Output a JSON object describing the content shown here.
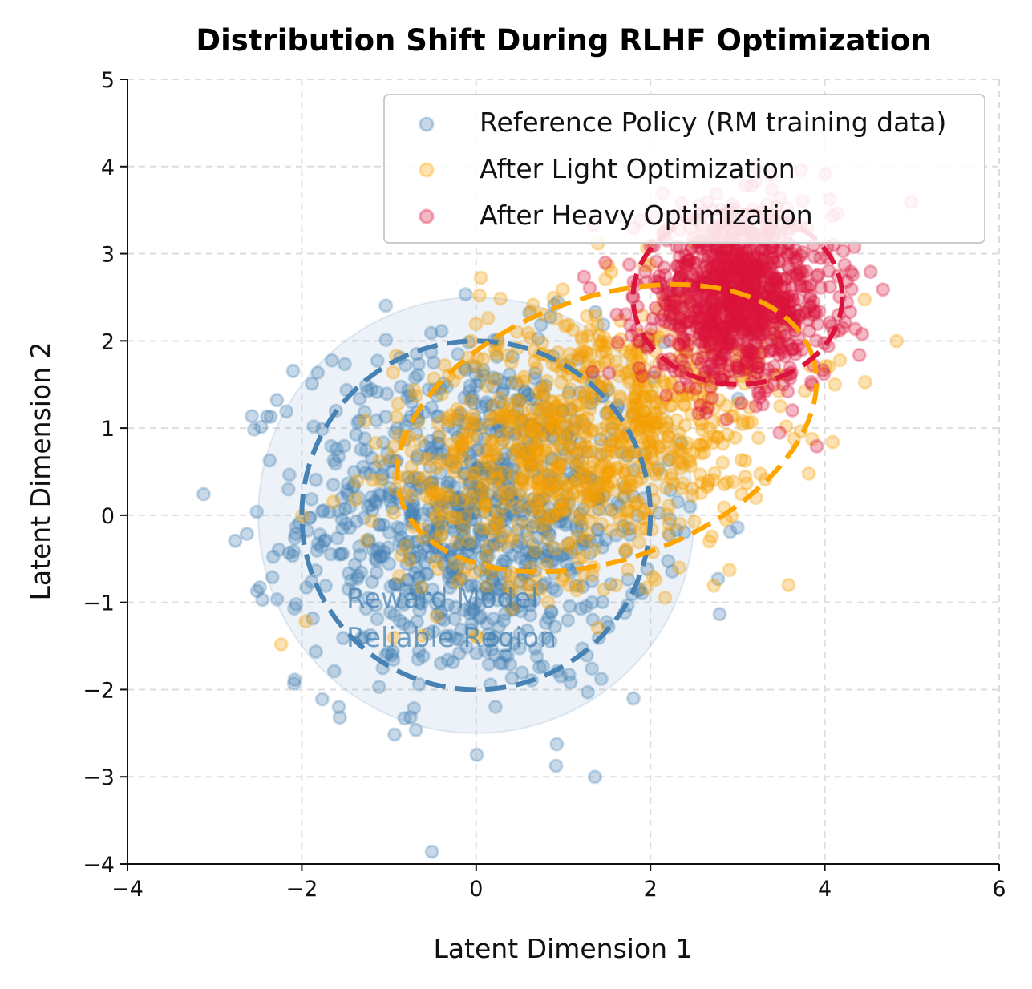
{
  "chart_data": {
    "type": "scatter",
    "title": "Distribution Shift During RLHF Optimization",
    "xlabel": "Latent Dimension 1",
    "ylabel": "Latent Dimension 2",
    "xlim": [
      -4,
      6
    ],
    "ylim": [
      -4,
      5
    ],
    "xticks": [
      -4,
      -2,
      0,
      2,
      4,
      6
    ],
    "yticks": [
      -4,
      -3,
      -2,
      -1,
      0,
      1,
      2,
      3,
      4,
      5
    ],
    "grid": true,
    "legend_position": "top-right",
    "series": [
      {
        "name": "Reference Policy (RM training data)",
        "color": "#4682b4",
        "distribution": "gaussian",
        "mean": [
          0,
          0
        ],
        "std": [
          1.0,
          1.0
        ],
        "correlation": 0,
        "count": 1000
      },
      {
        "name": "After Light Optimization",
        "color": "#f5a000",
        "distribution": "gaussian",
        "mean": [
          1.3,
          0.9
        ],
        "std": [
          1.1,
          0.8
        ],
        "correlation": 0.3,
        "count": 1000
      },
      {
        "name": "After Heavy Optimization",
        "color": "#dc143c",
        "distribution": "gaussian",
        "mean": [
          3.0,
          2.5
        ],
        "std": [
          0.55,
          0.5
        ],
        "correlation": 0,
        "count": 1000
      }
    ],
    "shapes": [
      {
        "kind": "filled-circle",
        "center": [
          0,
          0
        ],
        "radius": 2.5,
        "color": "#4682b4",
        "opacity": 0.1
      },
      {
        "kind": "dashed-circle",
        "center": [
          0,
          0
        ],
        "radius": 2,
        "color": "#4682b4"
      },
      {
        "kind": "dashed-ellipse",
        "center": [
          1.5,
          1.0
        ],
        "semi_axes": [
          2.5,
          1.5
        ],
        "angle_deg": 20,
        "color": "#ffa500"
      },
      {
        "kind": "dashed-ellipse",
        "center": [
          3.0,
          2.5
        ],
        "semi_axes": [
          1.2,
          1.0
        ],
        "angle_deg": 0,
        "color": "#dc143c"
      }
    ],
    "annotation": {
      "lines": [
        "Reward Model",
        "Reliable Region"
      ],
      "at": [
        -1.5,
        -1.0
      ]
    }
  }
}
